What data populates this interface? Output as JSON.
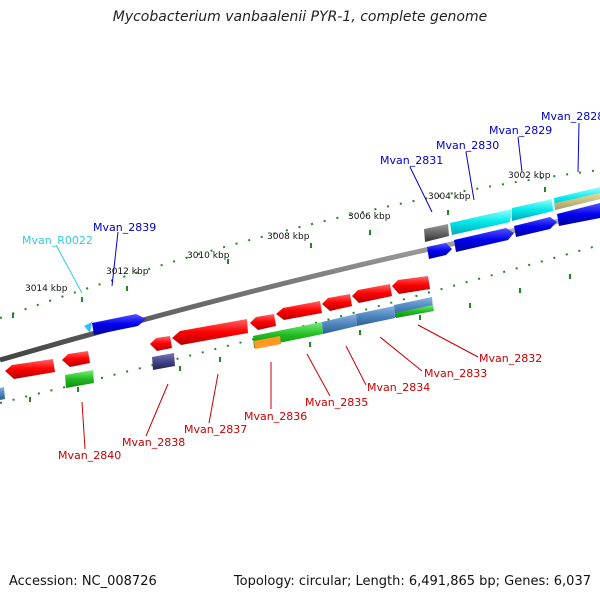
{
  "title": "Mycobacterium vanbaalenii PYR-1, complete genome",
  "footer": {
    "accession": "Accession: NC_008726",
    "summary": "Topology: circular; Length: 6,491,865 bp; Genes: 6,037"
  },
  "scale_labels": [
    "3002 kbp",
    "3004 kbp",
    "3006 kbp",
    "3008 kbp",
    "3010 kbp",
    "3012 kbp",
    "3014 kbp"
  ],
  "forward_genes": [
    "Mvan_2828",
    "Mvan_2829",
    "Mvan_2830",
    "Mvan_2831",
    "Mvan_2839",
    "Mvan_R0022"
  ],
  "reverse_genes": [
    "Mvan_2832",
    "Mvan_2833",
    "Mvan_2834",
    "Mvan_2835",
    "Mvan_2836",
    "Mvan_2837",
    "Mvan_2838",
    "Mvan_2840"
  ],
  "colors": {
    "forward_label": "#0000cc",
    "rna_label": "#33ccdd",
    "reverse_label": "#cc0000",
    "backbone": "#888888",
    "ticks": "#228822"
  }
}
